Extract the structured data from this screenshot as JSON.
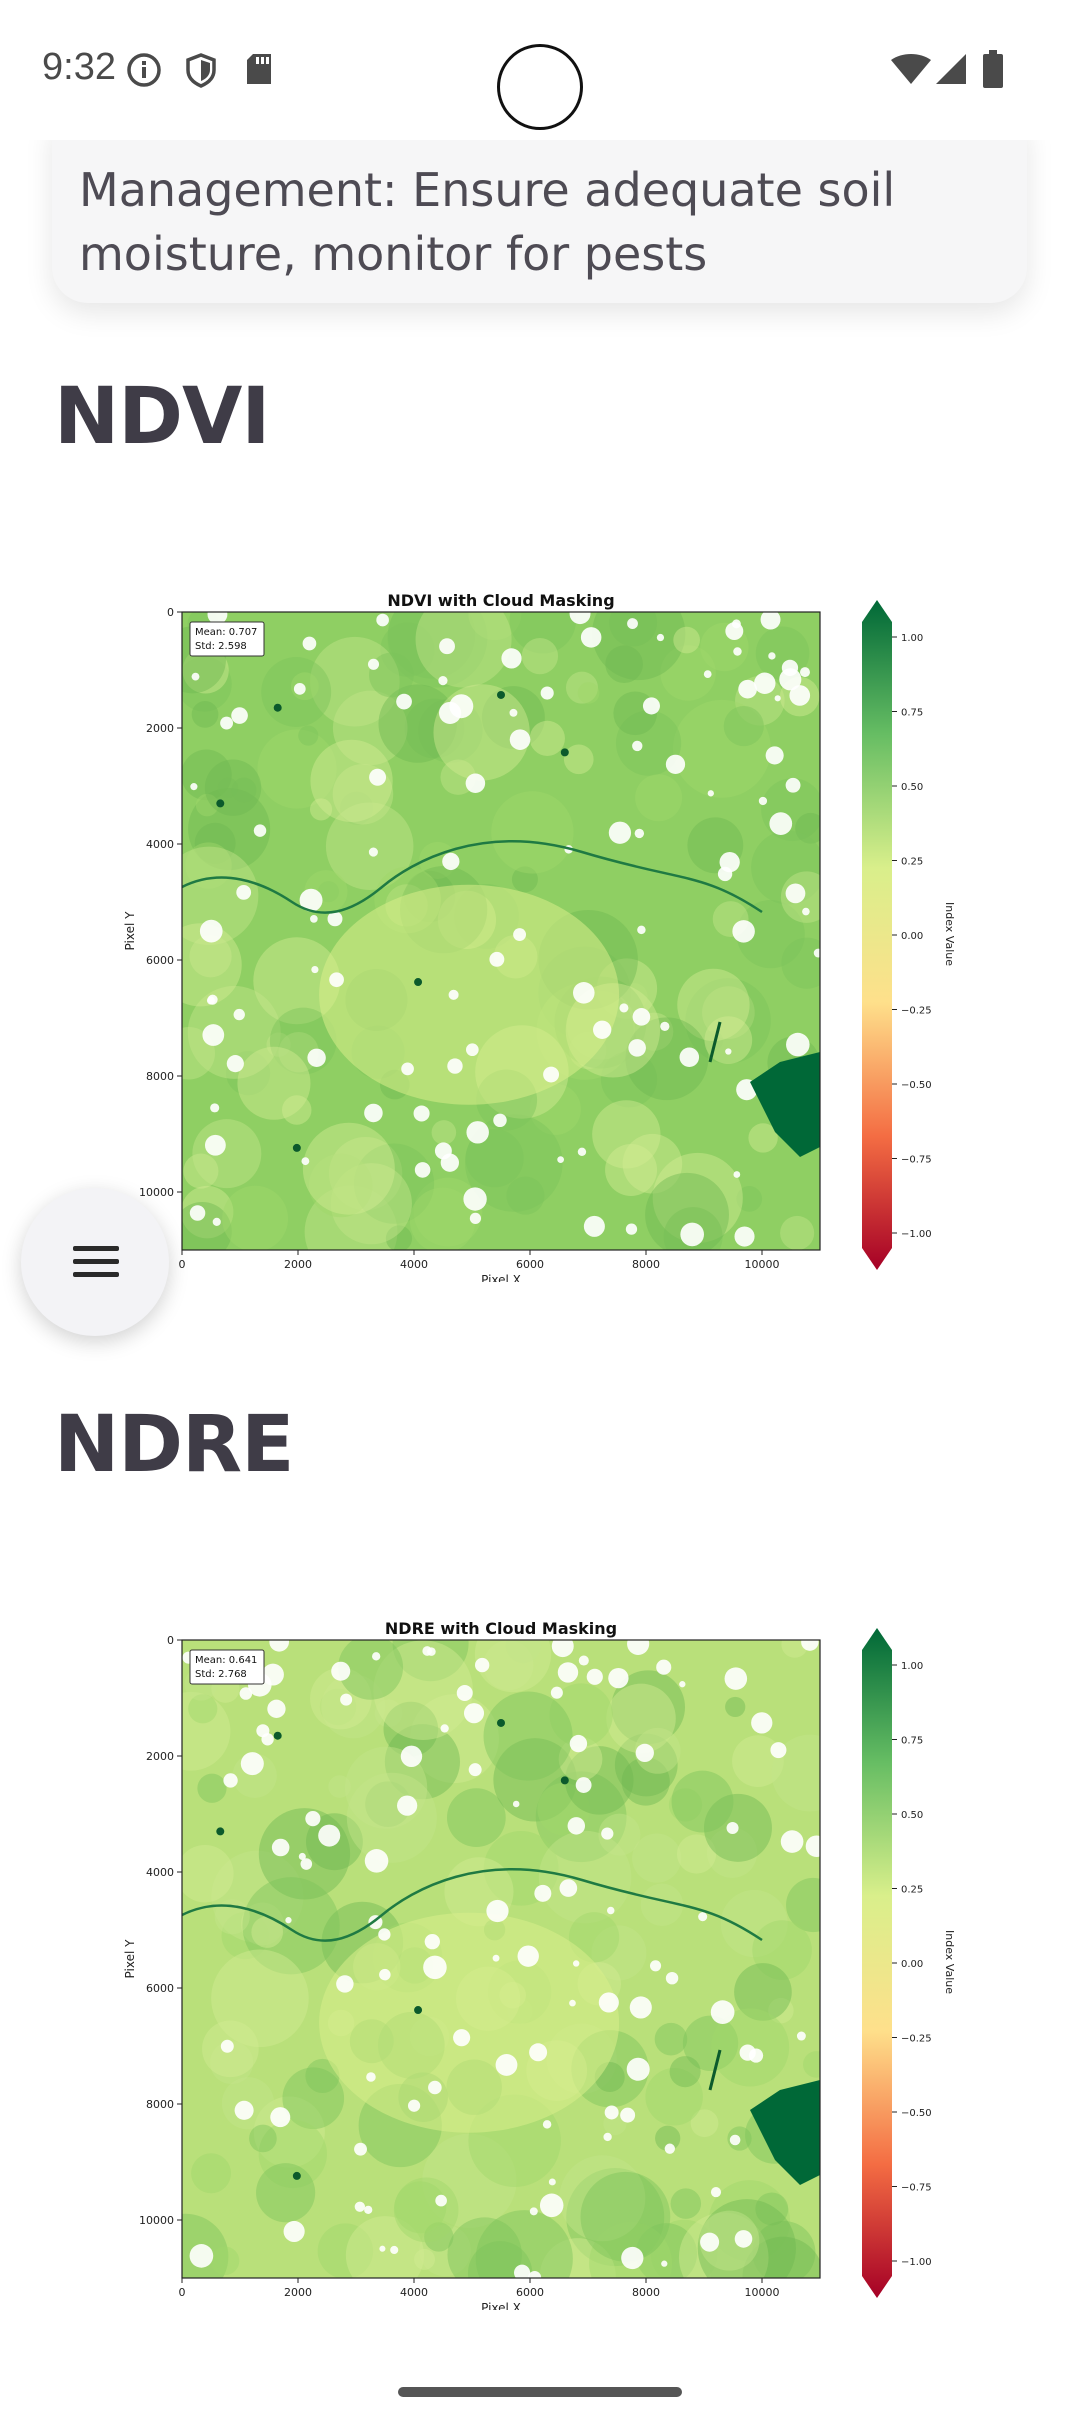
{
  "status_bar": {
    "time": "9:32",
    "left_icons": [
      "info-icon",
      "shield-icon",
      "sd-card-icon"
    ],
    "right_icons": [
      "wifi-icon",
      "signal-icon",
      "battery-icon"
    ]
  },
  "card": {
    "text": "Management: Ensure adequate soil moisture, monitor for pests"
  },
  "sections": [
    {
      "title": "NDVI"
    },
    {
      "title": "NDRE"
    }
  ],
  "colors": {
    "card_bg": "#f6f6f7",
    "heading": "#3f3c47",
    "colormap": [
      "#a50026",
      "#f46d43",
      "#fee08b",
      "#d9ef8b",
      "#66bd63",
      "#006837"
    ]
  },
  "chart_data": [
    {
      "type": "heatmap",
      "title": "NDVI with Cloud Masking",
      "xlabel": "Pixel X",
      "ylabel": "Pixel Y",
      "xticks": [
        "0",
        "2000",
        "4000",
        "6000",
        "8000",
        "10000"
      ],
      "yticks": [
        "0",
        "2000",
        "4000",
        "6000",
        "8000",
        "10000"
      ],
      "xlim": [
        0,
        11000
      ],
      "ylim": [
        0,
        11000
      ],
      "stats": {
        "mean": "Mean: 0.707",
        "std": "Std: 2.598"
      },
      "colorbar": {
        "label": "Index Value",
        "ticks": [
          "1.00",
          "0.75",
          "0.50",
          "0.25",
          "0.00",
          "−0.25",
          "−0.50",
          "−0.75",
          "−1.00"
        ],
        "range": [
          -1,
          1
        ]
      },
      "base_color": "#8fcf63",
      "grid": false
    },
    {
      "type": "heatmap",
      "title": "NDRE with Cloud Masking",
      "xlabel": "Pixel X",
      "ylabel": "Pixel Y",
      "xticks": [
        "0",
        "2000",
        "4000",
        "6000",
        "8000",
        "10000"
      ],
      "yticks": [
        "0",
        "2000",
        "4000",
        "6000",
        "8000",
        "10000"
      ],
      "xlim": [
        0,
        11000
      ],
      "ylim": [
        0,
        11000
      ],
      "stats": {
        "mean": "Mean: 0.641",
        "std": "Std: 2.768"
      },
      "colorbar": {
        "label": "Index Value",
        "ticks": [
          "1.00",
          "0.75",
          "0.50",
          "0.25",
          "0.00",
          "−0.25",
          "−0.50",
          "−0.75",
          "−1.00"
        ],
        "range": [
          -1,
          1
        ]
      },
      "base_color": "#b9e07a",
      "grid": false
    }
  ]
}
